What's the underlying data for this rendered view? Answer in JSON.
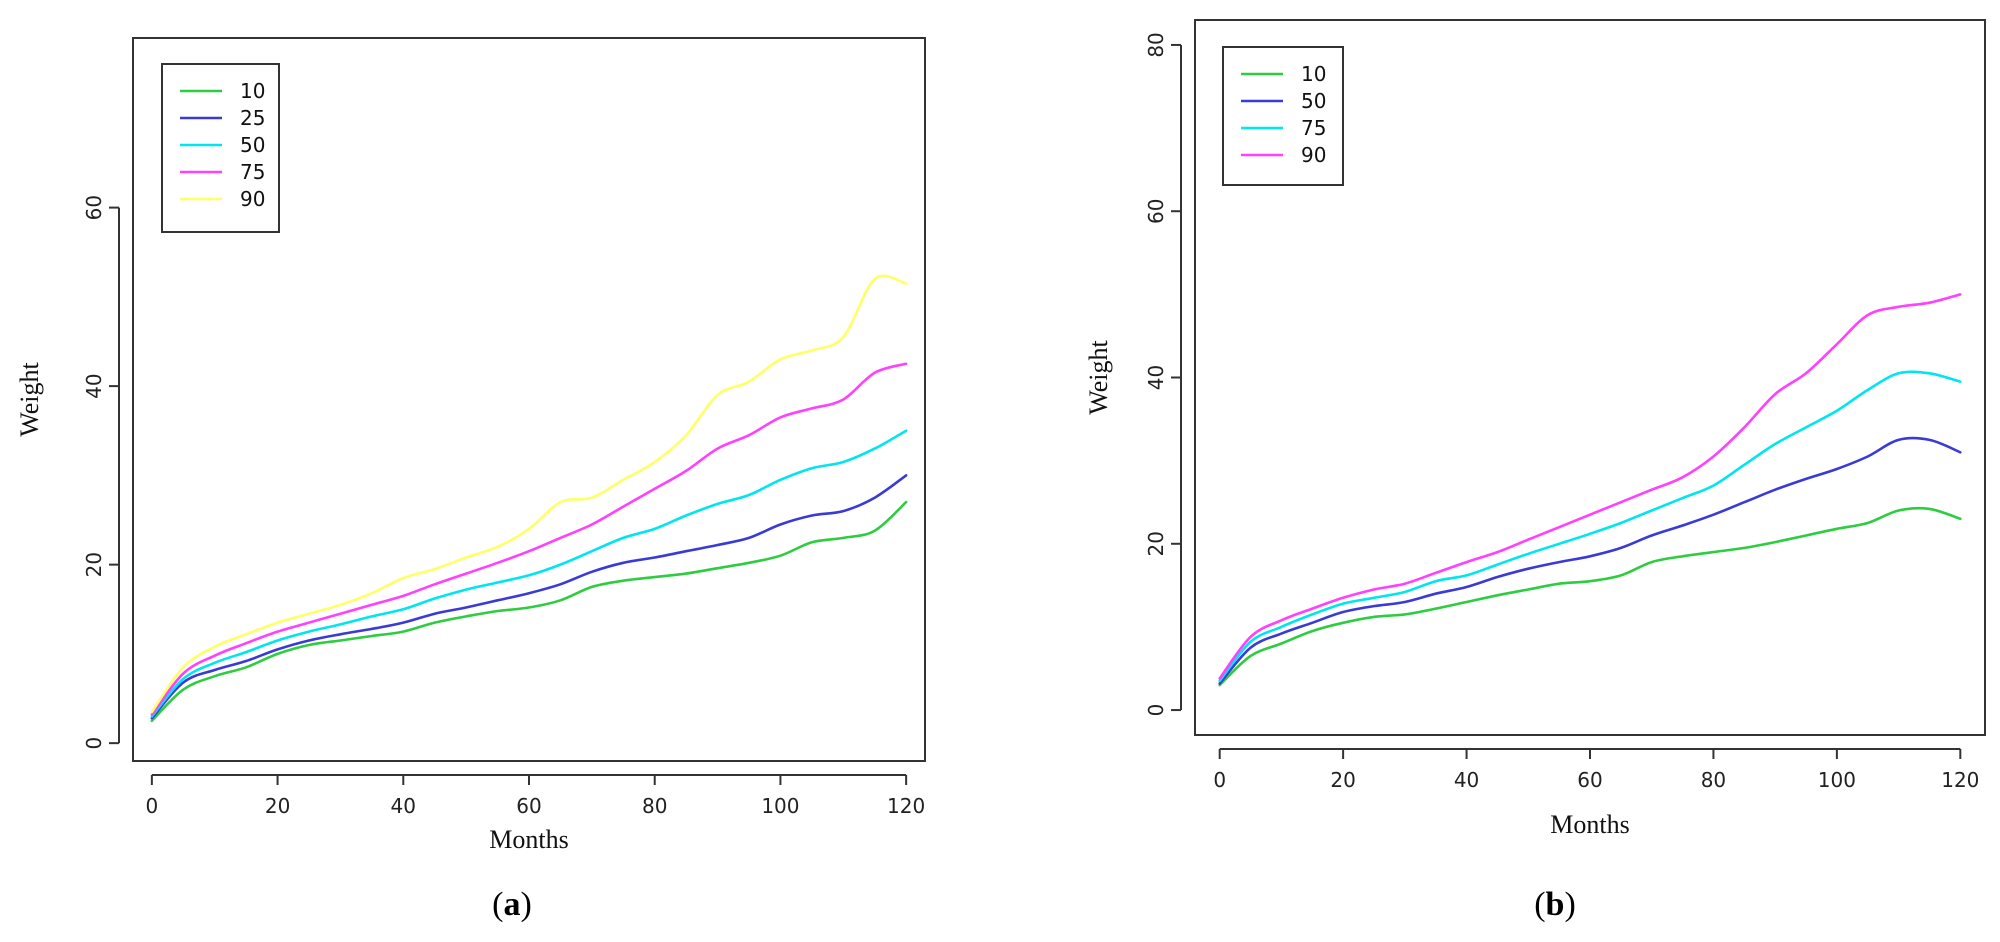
{
  "chart_data": [
    {
      "id": "a",
      "type": "line",
      "caption": "a",
      "xlabel": "Months",
      "ylabel": "Weight",
      "xlim": [
        -3,
        123
      ],
      "ylim": [
        -2,
        79
      ],
      "xticks": [
        0,
        20,
        40,
        60,
        80,
        100,
        120
      ],
      "yticks": [
        0,
        20,
        40,
        60
      ],
      "legend_position": "top-left",
      "x": [
        0,
        5,
        10,
        15,
        20,
        25,
        30,
        35,
        40,
        45,
        50,
        55,
        60,
        65,
        70,
        75,
        80,
        85,
        90,
        95,
        100,
        105,
        110,
        115,
        120
      ],
      "series": [
        {
          "name": "10",
          "color": "#2ecc40",
          "values": [
            2.5,
            6.0,
            7.5,
            8.5,
            10.0,
            11.0,
            11.5,
            12.0,
            12.5,
            13.5,
            14.2,
            14.8,
            15.2,
            16.0,
            17.5,
            18.2,
            18.6,
            19.0,
            19.6,
            20.2,
            21.0,
            22.5,
            23.0,
            23.8,
            27.0
          ]
        },
        {
          "name": "25",
          "color": "#3a3ad6",
          "values": [
            2.8,
            6.8,
            8.2,
            9.2,
            10.5,
            11.5,
            12.2,
            12.8,
            13.5,
            14.5,
            15.2,
            16.0,
            16.8,
            17.8,
            19.2,
            20.2,
            20.8,
            21.5,
            22.2,
            23.0,
            24.5,
            25.5,
            26.0,
            27.5,
            30.0
          ]
        },
        {
          "name": "50",
          "color": "#00e5ee",
          "values": [
            3.0,
            7.2,
            9.0,
            10.2,
            11.5,
            12.5,
            13.3,
            14.2,
            15.0,
            16.2,
            17.2,
            18.0,
            18.8,
            20.0,
            21.5,
            23.0,
            24.0,
            25.5,
            26.8,
            27.8,
            29.5,
            30.8,
            31.5,
            33.0,
            35.0
          ]
        },
        {
          "name": "75",
          "color": "#ff40ff",
          "values": [
            3.2,
            7.8,
            9.8,
            11.2,
            12.5,
            13.5,
            14.5,
            15.5,
            16.5,
            17.8,
            19.0,
            20.2,
            21.5,
            23.0,
            24.5,
            26.5,
            28.5,
            30.5,
            33.0,
            34.5,
            36.5,
            37.5,
            38.5,
            41.5,
            42.5
          ]
        },
        {
          "name": "90",
          "color": "#ffff66",
          "values": [
            3.5,
            8.5,
            10.8,
            12.2,
            13.5,
            14.5,
            15.5,
            16.8,
            18.5,
            19.5,
            20.8,
            22.0,
            24.0,
            27.0,
            27.5,
            29.5,
            31.5,
            34.5,
            39.0,
            40.5,
            43.0,
            44.0,
            45.5,
            52.0,
            51.5
          ]
        }
      ]
    },
    {
      "id": "b",
      "type": "line",
      "caption": "b",
      "xlabel": "Months",
      "ylabel": "Weight",
      "xlim": [
        -4,
        124
      ],
      "ylim": [
        -3,
        83
      ],
      "xticks": [
        0,
        20,
        40,
        60,
        80,
        100,
        120
      ],
      "yticks": [
        0,
        20,
        40,
        60,
        80
      ],
      "legend_position": "top-left",
      "x": [
        0,
        5,
        10,
        15,
        20,
        25,
        30,
        35,
        40,
        45,
        50,
        55,
        60,
        65,
        70,
        75,
        80,
        85,
        90,
        95,
        100,
        105,
        110,
        115,
        120
      ],
      "series": [
        {
          "name": "10",
          "color": "#2ecc40",
          "values": [
            3.0,
            6.5,
            8.0,
            9.5,
            10.5,
            11.2,
            11.5,
            12.2,
            13.0,
            13.8,
            14.5,
            15.2,
            15.5,
            16.2,
            17.8,
            18.5,
            19.0,
            19.5,
            20.2,
            21.0,
            21.8,
            22.5,
            24.0,
            24.2,
            23.0
          ]
        },
        {
          "name": "50",
          "color": "#3a3ad6",
          "values": [
            3.2,
            7.5,
            9.2,
            10.5,
            11.8,
            12.5,
            13.0,
            14.0,
            14.8,
            16.0,
            17.0,
            17.8,
            18.5,
            19.5,
            21.0,
            22.2,
            23.5,
            25.0,
            26.5,
            27.8,
            29.0,
            30.5,
            32.5,
            32.5,
            31.0
          ]
        },
        {
          "name": "75",
          "color": "#00e5ee",
          "values": [
            3.5,
            8.2,
            10.0,
            11.5,
            12.8,
            13.5,
            14.2,
            15.5,
            16.2,
            17.5,
            18.8,
            20.0,
            21.2,
            22.5,
            24.0,
            25.5,
            27.0,
            29.5,
            32.0,
            34.0,
            36.0,
            38.5,
            40.5,
            40.5,
            39.5
          ]
        },
        {
          "name": "90",
          "color": "#ff40ff",
          "values": [
            3.8,
            8.8,
            10.8,
            12.2,
            13.5,
            14.5,
            15.2,
            16.5,
            17.8,
            19.0,
            20.5,
            22.0,
            23.5,
            25.0,
            26.5,
            28.0,
            30.5,
            34.0,
            38.0,
            40.5,
            44.0,
            47.5,
            48.5,
            49.0,
            50.0
          ]
        }
      ]
    }
  ]
}
